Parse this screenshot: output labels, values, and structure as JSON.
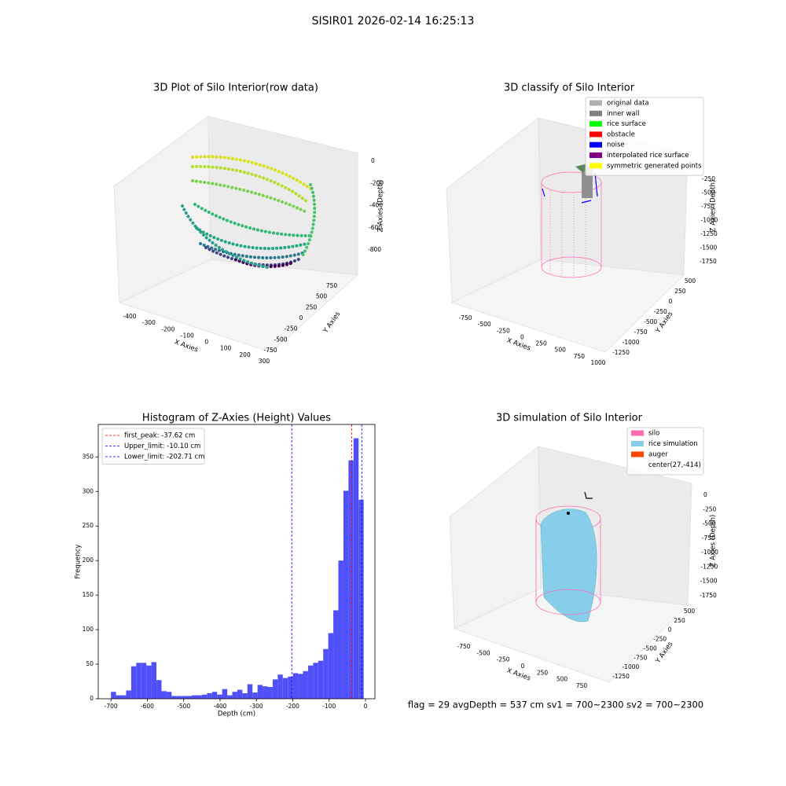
{
  "title": "SISIR01 2026-02-14 16:25:13",
  "footer": "flag = 29  avgDepth = 537 cm  sv1 = 700~2300  sv2 = 700~2300",
  "chart_data": [
    {
      "type": "scatter3d",
      "title": "3D Plot of Silo Interior(row data)",
      "xlabel": "X Axies",
      "ylabel": "Y Axies",
      "zlabel": "Z Axies (Depth)",
      "xticks": [
        -400,
        -300,
        -200,
        -100,
        0,
        100,
        200,
        300
      ],
      "yticks": [
        750,
        500,
        250,
        0,
        -250,
        -500,
        -750
      ],
      "zticks": [
        0,
        -200,
        -400,
        -600,
        -800
      ]
    },
    {
      "type": "scatter3d",
      "title": "3D classify of Silo Interior",
      "xlabel": "X Axies",
      "ylabel": "Y Axies",
      "zlabel": "Z Axies (Depth)",
      "xticks": [
        -750,
        -500,
        -250,
        0,
        250,
        500,
        750,
        1000
      ],
      "yticks": [
        500,
        250,
        0,
        -250,
        -500,
        -750,
        -1000,
        -1250
      ],
      "zticks": [
        -250,
        -500,
        -750,
        -1000,
        -1250,
        -1500,
        -1750
      ],
      "series": [
        {
          "name": "original data",
          "color": "#b0b0b0"
        },
        {
          "name": "inner wall",
          "color": "#808080"
        },
        {
          "name": "rice surface",
          "color": "#00ff00"
        },
        {
          "name": "obstacle",
          "color": "#ff0000"
        },
        {
          "name": "noise",
          "color": "#0000ff"
        },
        {
          "name": "interpolated rice surface",
          "color": "#800080"
        },
        {
          "name": "symmetric generated points",
          "color": "#ffff00"
        }
      ]
    },
    {
      "type": "histogram",
      "title": "Histogram of Z-Axies (Height) Values",
      "xlabel": "Depth (cm)",
      "ylabel": "Frequency",
      "color": "#5050f8",
      "bins": [
        -700,
        -686.1,
        -672.2,
        -658.3,
        -644.4,
        -630.5,
        -616.6,
        -602.7,
        -588.8,
        -574.9,
        -561,
        -547.1,
        -533.2,
        -519.3,
        -505.4,
        -491.5,
        -477.6,
        -463.7,
        -449.8,
        -435.9,
        -422,
        -408.1,
        -394.2,
        -380.3,
        -366.4,
        -352.5,
        -338.6,
        -324.7,
        -310.8,
        -296.9,
        -283,
        -269.1,
        -255.2,
        -241.3,
        -227.4,
        -213.5,
        -199.6,
        -185.7,
        -171.8,
        -157.9,
        -144,
        -130.1,
        -116.2,
        -102.3,
        -88.4,
        -74.5,
        -60.6,
        -46.7,
        -32.8,
        -18.9,
        -5
      ],
      "counts": [
        10,
        5,
        5,
        12,
        47,
        52,
        52,
        48,
        53,
        27,
        11,
        10,
        4,
        4,
        4,
        4,
        5,
        5,
        6,
        8,
        10,
        6,
        14,
        5,
        10,
        13,
        8,
        21,
        9,
        20,
        18,
        17,
        28,
        35,
        30,
        32,
        37,
        36,
        40,
        48,
        52,
        55,
        72,
        95,
        128,
        200,
        301,
        345,
        377,
        288
      ],
      "xlim": [
        -735,
        26
      ],
      "ylim": [
        0,
        397
      ],
      "xticks": [
        -700,
        -600,
        -500,
        -400,
        -300,
        -200,
        -100,
        0
      ],
      "yticks": [
        0,
        50,
        100,
        150,
        200,
        250,
        300,
        350
      ],
      "lines": [
        {
          "name": "first_peak: -37.62 cm",
          "value": -37.62,
          "color": "#ff0000"
        },
        {
          "name": "Upper_limit: -10.10 cm",
          "value": -10.1,
          "color": "#0000ff"
        },
        {
          "name": "Lower_limit: -202.71 cm",
          "value": -202.71,
          "color": "#0000ff"
        }
      ]
    },
    {
      "type": "scatter3d",
      "title": "3D simulation of Silo Interior",
      "xlabel": "X Axies",
      "ylabel": "Y Axies",
      "zlabel": "Z Axies (Depth)",
      "xticks": [
        -750,
        -500,
        -250,
        0,
        250,
        500,
        750
      ],
      "yticks": [
        500,
        250,
        0,
        -250,
        -500,
        -750,
        -1000,
        -1250
      ],
      "zticks": [
        0,
        -250,
        -500,
        -750,
        -1000,
        -1250,
        -1500,
        -1750
      ],
      "series": [
        {
          "name": "silo",
          "color": "#ff69b4"
        },
        {
          "name": "rice simulation",
          "color": "#87ceeb"
        },
        {
          "name": "auger",
          "color": "#ff4500"
        },
        {
          "name": "center(27,-414)"
        }
      ]
    }
  ]
}
